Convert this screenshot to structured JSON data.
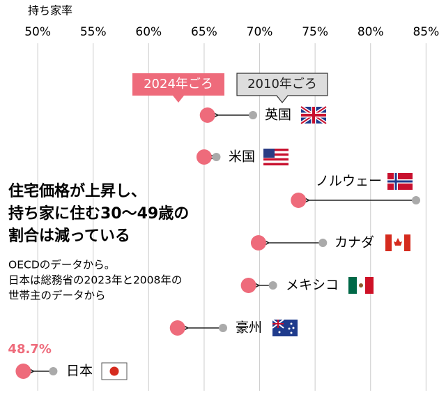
{
  "chart_data": {
    "type": "arrow-dot",
    "axis_label": "持ち家率",
    "categories": [
      "英国",
      "米国",
      "ノルウェー",
      "カナダ",
      "メキシコ",
      "豪州",
      "日本"
    ],
    "series": [
      {
        "name": "2024年ごろ",
        "color": "#ee6b7b",
        "values": [
          65.3,
          65.0,
          73.5,
          69.9,
          69.0,
          62.6,
          48.7
        ],
        "value_labels": [
          null,
          null,
          null,
          null,
          null,
          null,
          "48.7%"
        ]
      },
      {
        "name": "2010年ごろ",
        "color": "#aaaaaa",
        "values": [
          69.4,
          66.1,
          84.1,
          75.7,
          71.2,
          66.7,
          51.4
        ]
      }
    ],
    "xlim": [
      46.6,
      86.8
    ],
    "xticks": [
      {
        "value": 50,
        "label": "50%"
      },
      {
        "value": 55,
        "label": "55%"
      },
      {
        "value": 60,
        "label": "60%"
      },
      {
        "value": 65,
        "label": "65%"
      },
      {
        "value": 70,
        "label": "70%"
      },
      {
        "value": 75,
        "label": "75%"
      },
      {
        "value": 80,
        "label": "80%"
      },
      {
        "value": 85,
        "label": "85%"
      }
    ],
    "grid": true,
    "headline": [
      "住宅価格が上昇し、",
      "持ち家に住む30〜49歳の",
      "割合は減っている"
    ],
    "note": [
      "OECDのデータから。",
      "日本は総務省の2023年と2008年の",
      "世帯主のデータから"
    ]
  }
}
